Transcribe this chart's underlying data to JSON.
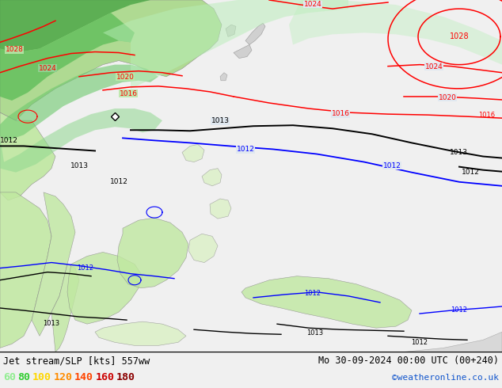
{
  "title_left": "Jet stream/SLP [kts] 557ww",
  "title_right": "Mo 30-09-2024 00:00 UTC (00+240)",
  "credit": "©weatheronline.co.uk",
  "legend_values": [
    "60",
    "80",
    "100",
    "120",
    "140",
    "160",
    "180"
  ],
  "legend_colors": [
    "#90ee90",
    "#32cd32",
    "#ffd700",
    "#ff8c00",
    "#ff4500",
    "#cc0000",
    "#8b0000"
  ],
  "map_bg": "#e8e8e8",
  "ocean_color": "#e0e8f0",
  "bottom_bg": "#f0f0f0",
  "figsize": [
    6.34,
    4.9
  ],
  "dpi": 100,
  "green_shades": {
    "dark": "#4caf50",
    "medium": "#81c784",
    "light": "#c8e6c9",
    "vlight": "#e8f5e9"
  }
}
